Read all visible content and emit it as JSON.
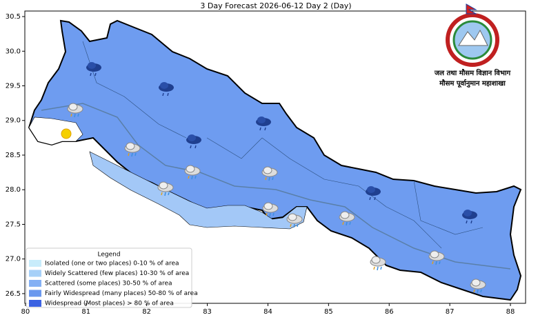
{
  "map": {
    "title": "3 Day Forecast 2026-06-12 Day 2 (Day)",
    "xlim": [
      79.99,
      88.25
    ],
    "ylim": [
      26.36,
      30.58
    ],
    "xticks": [
      80,
      81,
      82,
      83,
      84,
      85,
      86,
      87,
      88
    ],
    "yticks": [
      26.5,
      {
        "value": 27,
        "label": "27.0"
      },
      27.5,
      {
        "value": 28,
        "label": "28.0"
      },
      28.5,
      {
        "value": 29,
        "label": "29.0"
      },
      29.5,
      {
        "value": 30,
        "label": "30.0"
      },
      30.5
    ],
    "legend": {
      "title": "Legend",
      "entries": [
        {
          "name": "Isolated (one or two places)  0-10 % of area",
          "color": "#c8ecfb"
        },
        {
          "name": "Widely Scattered (few places)  10-30 % of area",
          "color": "#a6d0f8"
        },
        {
          "name": "Scattered (some places)  30-50 % of area",
          "color": "#84b0f4"
        },
        {
          "name": "Fairly Widespread (many places)  50-80 % of area",
          "color": "#6a98ee"
        },
        {
          "name": "Widespread (Most places) > 80 % of area",
          "color": "#3b62e2"
        }
      ]
    },
    "logo": {
      "line1": "जल तथा मौसम विज्ञान विभाग",
      "line2": "मौसम पूर्वानुमान महाशाखा"
    }
  }
}
